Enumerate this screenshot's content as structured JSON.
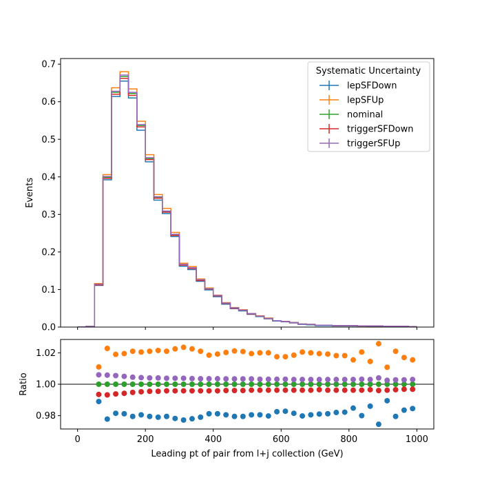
{
  "chart_data": [
    {
      "type": "line",
      "panel": "top",
      "xlabel": "",
      "ylabel": "Events",
      "xlim": [
        -50,
        1050
      ],
      "ylim": [
        0,
        0.715
      ],
      "yticks": [
        0.0,
        0.1,
        0.2,
        0.3,
        0.4,
        0.5,
        0.6,
        0.7
      ],
      "ytick_labels": [
        "0.0",
        "0.1",
        "0.2",
        "0.3",
        "0.4",
        "0.5",
        "0.6",
        "0.7"
      ],
      "xticks": [
        0,
        200,
        400,
        600,
        800,
        1000
      ],
      "grid": false,
      "legend": {
        "title": "Systematic Uncertainty",
        "position": "top-right",
        "entries": [
          "lepSFDown",
          "lepSFUp",
          "nominal",
          "triggerSFDown",
          "triggerSFUp"
        ]
      },
      "bin_edges": [
        0,
        25,
        50,
        75,
        100,
        125,
        150,
        175,
        200,
        225,
        250,
        275,
        300,
        325,
        350,
        375,
        400,
        425,
        450,
        475,
        500,
        525,
        550,
        575,
        600,
        625,
        650,
        675,
        700,
        725,
        750,
        775,
        800,
        825,
        850,
        875,
        900,
        925,
        950,
        975,
        1000
      ],
      "series": [
        {
          "name": "lepSFDown",
          "color": "#1f77b4",
          "values": [
            0.0005,
            0.0015,
            0.111,
            0.392,
            0.614,
            0.655,
            0.61,
            0.524,
            0.44,
            0.338,
            0.302,
            0.241,
            0.162,
            0.153,
            0.122,
            0.099,
            0.081,
            0.061,
            0.049,
            0.043,
            0.034,
            0.028,
            0.022,
            0.016,
            0.014,
            0.011,
            0.007,
            0.006,
            0.004,
            0.004,
            0.003,
            0.003,
            0.003,
            0.003,
            0.002,
            0.002,
            0.002,
            0.002,
            0.001,
            0.001
          ]
        },
        {
          "name": "lepSFUp",
          "color": "#ff7f0e",
          "values": [
            0.0005,
            0.0016,
            0.116,
            0.406,
            0.637,
            0.68,
            0.634,
            0.548,
            0.459,
            0.353,
            0.316,
            0.252,
            0.17,
            0.161,
            0.128,
            0.104,
            0.085,
            0.065,
            0.052,
            0.046,
            0.036,
            0.03,
            0.024,
            0.017,
            0.015,
            0.012,
            0.008,
            0.007,
            0.005,
            0.005,
            0.004,
            0.004,
            0.004,
            0.003,
            0.003,
            0.003,
            0.002,
            0.002,
            0.002,
            0.001
          ]
        },
        {
          "name": "nominal",
          "color": "#2ca02c",
          "values": [
            0.0005,
            0.0016,
            0.113,
            0.399,
            0.625,
            0.667,
            0.622,
            0.537,
            0.449,
            0.346,
            0.308,
            0.246,
            0.166,
            0.157,
            0.125,
            0.102,
            0.083,
            0.063,
            0.051,
            0.045,
            0.035,
            0.029,
            0.023,
            0.017,
            0.015,
            0.012,
            0.008,
            0.007,
            0.005,
            0.005,
            0.004,
            0.004,
            0.004,
            0.003,
            0.003,
            0.003,
            0.002,
            0.002,
            0.002,
            0.001
          ]
        },
        {
          "name": "triggerSFDown",
          "color": "#d62728",
          "values": [
            0.0005,
            0.0016,
            0.112,
            0.396,
            0.62,
            0.662,
            0.617,
            0.533,
            0.446,
            0.343,
            0.306,
            0.244,
            0.165,
            0.156,
            0.124,
            0.101,
            0.083,
            0.063,
            0.05,
            0.045,
            0.035,
            0.029,
            0.023,
            0.017,
            0.015,
            0.012,
            0.008,
            0.007,
            0.005,
            0.005,
            0.004,
            0.004,
            0.004,
            0.003,
            0.003,
            0.003,
            0.002,
            0.002,
            0.002,
            0.001
          ]
        },
        {
          "name": "triggerSFUp",
          "color": "#9467bd",
          "values": [
            0.0005,
            0.0016,
            0.114,
            0.401,
            0.628,
            0.671,
            0.625,
            0.539,
            0.451,
            0.347,
            0.309,
            0.247,
            0.167,
            0.158,
            0.126,
            0.102,
            0.084,
            0.064,
            0.051,
            0.045,
            0.036,
            0.029,
            0.023,
            0.017,
            0.015,
            0.012,
            0.008,
            0.007,
            0.005,
            0.005,
            0.004,
            0.004,
            0.004,
            0.003,
            0.003,
            0.003,
            0.002,
            0.002,
            0.002,
            0.001
          ]
        }
      ]
    },
    {
      "type": "scatter",
      "panel": "bottom",
      "xlabel": "Leading pt of pair from l+j collection (GeV)",
      "ylabel": "Ratio",
      "xlim": [
        -50,
        1050
      ],
      "ylim": [
        0.9715,
        1.0285
      ],
      "yticks": [
        0.98,
        1.0,
        1.02
      ],
      "ytick_labels": [
        "0.98",
        "1.00",
        "1.02"
      ],
      "xticks": [
        0,
        200,
        400,
        600,
        800,
        1000
      ],
      "xtick_labels": [
        "0",
        "200",
        "400",
        "600",
        "800",
        "1000"
      ],
      "reference_line": 1.0,
      "grid": false,
      "x": [
        62.5,
        87.5,
        112.5,
        137.5,
        162.5,
        187.5,
        212.5,
        237.5,
        262.5,
        287.5,
        312.5,
        337.5,
        362.5,
        387.5,
        412.5,
        437.5,
        462.5,
        487.5,
        512.5,
        537.5,
        562.5,
        587.5,
        612.5,
        637.5,
        662.5,
        687.5,
        712.5,
        737.5,
        762.5,
        787.5,
        812.5,
        837.5,
        862.5,
        887.5,
        912.5,
        937.5,
        962.5,
        987.5
      ],
      "series": [
        {
          "name": "lepSFDown",
          "color": "#1f77b4",
          "values": [
            0.989,
            0.9778,
            0.9815,
            0.9812,
            0.9795,
            0.9805,
            0.9795,
            0.979,
            0.9795,
            0.9782,
            0.9772,
            0.978,
            0.979,
            0.9812,
            0.9812,
            0.9805,
            0.9795,
            0.9795,
            0.9805,
            0.9805,
            0.9798,
            0.9825,
            0.9828,
            0.9815,
            0.9798,
            0.9805,
            0.981,
            0.9812,
            0.982,
            0.9822,
            0.9848,
            0.98,
            0.986,
            0.9745,
            0.9895,
            0.9795,
            0.9835,
            0.9845
          ]
        },
        {
          "name": "lepSFUp",
          "color": "#ff7f0e",
          "values": [
            1.011,
            1.0228,
            1.019,
            1.0195,
            1.021,
            1.0205,
            1.021,
            1.0215,
            1.021,
            1.0225,
            1.0235,
            1.0225,
            1.021,
            1.0185,
            1.0192,
            1.0202,
            1.0212,
            1.0208,
            1.0195,
            1.02,
            1.02,
            1.0175,
            1.0175,
            1.0185,
            1.0205,
            1.02,
            1.0195,
            1.0192,
            1.0182,
            1.0182,
            1.0155,
            1.0205,
            1.0145,
            1.0258,
            1.0108,
            1.021,
            1.017,
            1.0155
          ]
        },
        {
          "name": "nominal",
          "color": "#2ca02c",
          "values": [
            1.0,
            1.0,
            1.0,
            1.0,
            1.0,
            1.0,
            1.0,
            1.0,
            1.0,
            1.0,
            1.0,
            1.0,
            1.0,
            1.0,
            1.0,
            1.0,
            1.0,
            1.0,
            1.0,
            1.0,
            1.0,
            1.0,
            1.0,
            1.0,
            1.0,
            1.0,
            1.0,
            1.0,
            1.0,
            1.0,
            1.0,
            1.0,
            1.0,
            1.0,
            1.0,
            1.0,
            1.0,
            1.0
          ]
        },
        {
          "name": "triggerSFDown",
          "color": "#d62728",
          "values": [
            0.9935,
            0.9932,
            0.9938,
            0.9942,
            0.9948,
            0.9952,
            0.9955,
            0.9955,
            0.9958,
            0.9958,
            0.9958,
            0.9958,
            0.9958,
            0.9958,
            0.9958,
            0.996,
            0.996,
            0.996,
            0.9962,
            0.9962,
            0.9962,
            0.9962,
            0.9962,
            0.9962,
            0.9962,
            0.9962,
            0.9965,
            0.9962,
            0.9962,
            0.9962,
            0.9962,
            0.9962,
            0.9965,
            0.996,
            0.9962,
            0.9965,
            0.9968,
            0.9968
          ]
        },
        {
          "name": "triggerSFUp",
          "color": "#9467bd",
          "values": [
            1.006,
            1.0058,
            1.0055,
            1.005,
            1.0045,
            1.0042,
            1.004,
            1.004,
            1.0038,
            1.0038,
            1.0038,
            1.0036,
            1.0035,
            1.0035,
            1.0035,
            1.0034,
            1.0034,
            1.0034,
            1.0034,
            1.0032,
            1.0032,
            1.0032,
            1.0032,
            1.003,
            1.003,
            1.003,
            1.003,
            1.003,
            1.003,
            1.003,
            1.003,
            1.0032,
            1.003,
            1.004,
            1.0025,
            1.0028,
            1.0028,
            1.003
          ]
        }
      ]
    }
  ]
}
